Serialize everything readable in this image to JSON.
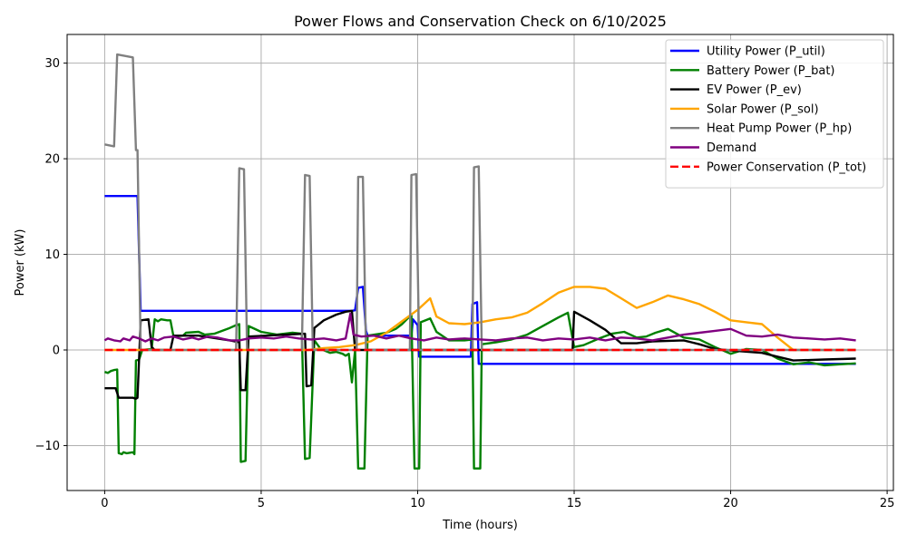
{
  "chart_data": {
    "type": "line",
    "title": "Power Flows and Conservation Check on 6/10/2025",
    "xlabel": "Time (hours)",
    "ylabel": "Power (kW)",
    "xlim": [
      -1.2,
      25.2
    ],
    "ylim": [
      -14.7,
      33
    ],
    "xticks": [
      0,
      5,
      10,
      15,
      20,
      25
    ],
    "yticks": [
      -10,
      0,
      10,
      20,
      30
    ],
    "grid": true,
    "legend_position": "top-right",
    "series": [
      {
        "name": "Utility Power (P_util)",
        "color": "#0000ff",
        "dash": "solid",
        "points": [
          [
            0,
            16.1
          ],
          [
            1.05,
            16.1
          ],
          [
            1.15,
            4.1
          ],
          [
            7.9,
            4.1
          ],
          [
            8.0,
            4.15
          ],
          [
            8.1,
            6.5
          ],
          [
            8.25,
            6.6
          ],
          [
            8.35,
            2.0
          ],
          [
            8.4,
            1.5
          ],
          [
            9.8,
            1.5
          ],
          [
            9.85,
            3.2
          ],
          [
            10.0,
            2.6
          ],
          [
            10.05,
            -0.7
          ],
          [
            11.7,
            -0.7
          ],
          [
            11.75,
            4.8
          ],
          [
            11.9,
            5.0
          ],
          [
            11.95,
            -1.45
          ],
          [
            24,
            -1.45
          ]
        ]
      },
      {
        "name": "Battery Power (P_bat)",
        "color": "#008000",
        "dash": "solid",
        "points": [
          [
            0,
            -2.3
          ],
          [
            0.1,
            -2.4
          ],
          [
            0.2,
            -2.2
          ],
          [
            0.3,
            -2.1
          ],
          [
            0.4,
            -2.05
          ],
          [
            0.45,
            -10.8
          ],
          [
            0.55,
            -10.9
          ],
          [
            0.6,
            -10.7
          ],
          [
            0.7,
            -10.8
          ],
          [
            0.9,
            -10.7
          ],
          [
            0.95,
            -10.9
          ],
          [
            1.0,
            -1.1
          ],
          [
            1.1,
            -1.0
          ],
          [
            1.2,
            0.0
          ],
          [
            1.5,
            0.1
          ],
          [
            1.6,
            3.2
          ],
          [
            1.7,
            3.0
          ],
          [
            1.8,
            3.2
          ],
          [
            2.0,
            3.1
          ],
          [
            2.1,
            3.1
          ],
          [
            2.2,
            1.4
          ],
          [
            2.5,
            1.5
          ],
          [
            2.6,
            1.8
          ],
          [
            3.0,
            1.9
          ],
          [
            3.2,
            1.6
          ],
          [
            3.5,
            1.7
          ],
          [
            4.0,
            2.3
          ],
          [
            4.2,
            2.6
          ],
          [
            4.3,
            2.7
          ],
          [
            4.35,
            -11.7
          ],
          [
            4.5,
            -11.6
          ],
          [
            4.6,
            2.5
          ],
          [
            5.0,
            1.9
          ],
          [
            5.5,
            1.6
          ],
          [
            6.0,
            1.8
          ],
          [
            6.3,
            1.7
          ],
          [
            6.4,
            -11.4
          ],
          [
            6.55,
            -11.3
          ],
          [
            6.7,
            1.0
          ],
          [
            6.9,
            0.1
          ],
          [
            7.2,
            -0.3
          ],
          [
            7.4,
            -0.2
          ],
          [
            7.6,
            -0.4
          ],
          [
            7.7,
            -0.6
          ],
          [
            7.8,
            -0.4
          ],
          [
            7.9,
            -3.4
          ],
          [
            8.0,
            0.0
          ],
          [
            8.1,
            -12.4
          ],
          [
            8.3,
            -12.4
          ],
          [
            8.4,
            1.5
          ],
          [
            9.0,
            1.8
          ],
          [
            9.3,
            2.2
          ],
          [
            9.5,
            2.7
          ],
          [
            9.8,
            3.7
          ],
          [
            9.9,
            -12.4
          ],
          [
            10.05,
            -12.4
          ],
          [
            10.1,
            2.9
          ],
          [
            10.4,
            3.3
          ],
          [
            10.6,
            1.9
          ],
          [
            11.0,
            1.0
          ],
          [
            11.5,
            1.0
          ],
          [
            11.75,
            1.1
          ],
          [
            11.8,
            -12.4
          ],
          [
            12.0,
            -12.4
          ],
          [
            12.05,
            0.6
          ],
          [
            12.5,
            0.8
          ],
          [
            13.0,
            1.1
          ],
          [
            13.5,
            1.6
          ],
          [
            14.0,
            2.5
          ],
          [
            14.5,
            3.4
          ],
          [
            14.8,
            3.9
          ],
          [
            15.0,
            0.3
          ],
          [
            15.3,
            0.5
          ],
          [
            15.8,
            1.2
          ],
          [
            16.2,
            1.7
          ],
          [
            16.6,
            1.9
          ],
          [
            17.0,
            1.3
          ],
          [
            17.3,
            1.4
          ],
          [
            17.6,
            1.8
          ],
          [
            18.0,
            2.2
          ],
          [
            18.5,
            1.3
          ],
          [
            19.0,
            1.1
          ],
          [
            19.5,
            0.3
          ],
          [
            20.0,
            -0.4
          ],
          [
            20.5,
            0.1
          ],
          [
            21.0,
            0.0
          ],
          [
            21.5,
            -0.9
          ],
          [
            22.0,
            -1.5
          ],
          [
            22.5,
            -1.3
          ],
          [
            23.0,
            -1.6
          ],
          [
            23.5,
            -1.5
          ],
          [
            24.0,
            -1.4
          ]
        ]
      },
      {
        "name": "EV Power (P_ev)",
        "color": "#000000",
        "dash": "solid",
        "points": [
          [
            0,
            -4.0
          ],
          [
            0.35,
            -4.0
          ],
          [
            0.45,
            -5.0
          ],
          [
            0.9,
            -5.0
          ],
          [
            1.0,
            -5.1
          ],
          [
            1.05,
            -5.0
          ],
          [
            1.15,
            3.1
          ],
          [
            1.4,
            3.2
          ],
          [
            1.5,
            0.3
          ],
          [
            1.6,
            0.0
          ],
          [
            2.1,
            0.0
          ],
          [
            2.2,
            1.5
          ],
          [
            3.0,
            1.5
          ],
          [
            4.0,
            1.0
          ],
          [
            4.3,
            0.8
          ],
          [
            4.35,
            -4.2
          ],
          [
            4.5,
            -4.2
          ],
          [
            4.6,
            1.4
          ],
          [
            6.4,
            1.7
          ],
          [
            6.45,
            -3.8
          ],
          [
            6.6,
            -3.7
          ],
          [
            6.7,
            2.3
          ],
          [
            7.0,
            3.1
          ],
          [
            7.4,
            3.7
          ],
          [
            7.7,
            4.0
          ],
          [
            7.9,
            4.1
          ],
          [
            8.0,
            0.0
          ],
          [
            14.95,
            0.0
          ],
          [
            15.0,
            4.0
          ],
          [
            15.5,
            3.1
          ],
          [
            16.0,
            2.1
          ],
          [
            16.5,
            0.7
          ],
          [
            17.0,
            0.7
          ],
          [
            17.5,
            0.9
          ],
          [
            18.5,
            1.0
          ],
          [
            19.0,
            0.6
          ],
          [
            19.5,
            0.1
          ],
          [
            20.0,
            -0.05
          ],
          [
            21.0,
            -0.3
          ],
          [
            21.5,
            -0.7
          ],
          [
            22.0,
            -1.1
          ],
          [
            23.0,
            -1.0
          ],
          [
            24.0,
            -0.9
          ]
        ]
      },
      {
        "name": "Solar Power (P_sol)",
        "color": "#ffa500",
        "dash": "solid",
        "points": [
          [
            0,
            0
          ],
          [
            6.5,
            0
          ],
          [
            7.0,
            0.2
          ],
          [
            7.5,
            0.3
          ],
          [
            8.0,
            0.5
          ],
          [
            8.5,
            0.9
          ],
          [
            9.0,
            1.8
          ],
          [
            9.5,
            3.0
          ],
          [
            10.0,
            4.2
          ],
          [
            10.4,
            5.4
          ],
          [
            10.6,
            3.5
          ],
          [
            11.0,
            2.8
          ],
          [
            11.5,
            2.7
          ],
          [
            12.0,
            2.9
          ],
          [
            12.5,
            3.2
          ],
          [
            13.0,
            3.4
          ],
          [
            13.5,
            3.9
          ],
          [
            14.0,
            4.9
          ],
          [
            14.5,
            6.0
          ],
          [
            15.0,
            6.6
          ],
          [
            15.5,
            6.6
          ],
          [
            16.0,
            6.4
          ],
          [
            16.5,
            5.4
          ],
          [
            17.0,
            4.4
          ],
          [
            17.5,
            5.0
          ],
          [
            18.0,
            5.7
          ],
          [
            18.5,
            5.3
          ],
          [
            19.0,
            4.8
          ],
          [
            19.5,
            4.0
          ],
          [
            20.0,
            3.1
          ],
          [
            20.5,
            2.9
          ],
          [
            21.0,
            2.7
          ],
          [
            21.5,
            1.3
          ],
          [
            22.0,
            0.0
          ],
          [
            24.0,
            0.0
          ]
        ]
      },
      {
        "name": "Heat Pump Power (P_hp)",
        "color": "#808080",
        "dash": "solid",
        "points": [
          [
            0,
            21.5
          ],
          [
            0.3,
            21.3
          ],
          [
            0.4,
            30.9
          ],
          [
            0.9,
            30.6
          ],
          [
            1.0,
            20.9
          ],
          [
            1.05,
            20.9
          ],
          [
            1.15,
            0.0
          ],
          [
            4.2,
            0.0
          ],
          [
            4.3,
            19.0
          ],
          [
            4.45,
            18.9
          ],
          [
            4.55,
            0.0
          ],
          [
            6.3,
            0.0
          ],
          [
            6.4,
            18.3
          ],
          [
            6.55,
            18.2
          ],
          [
            6.65,
            0.0
          ],
          [
            8.05,
            0.0
          ],
          [
            8.1,
            18.1
          ],
          [
            8.25,
            18.1
          ],
          [
            8.35,
            0.0
          ],
          [
            9.75,
            0.0
          ],
          [
            9.8,
            18.3
          ],
          [
            9.95,
            18.4
          ],
          [
            10.05,
            0.0
          ],
          [
            11.75,
            0.0
          ],
          [
            11.8,
            19.1
          ],
          [
            11.95,
            19.2
          ],
          [
            12.05,
            0.0
          ],
          [
            24.0,
            0.0
          ]
        ]
      },
      {
        "name": "Demand",
        "color": "#800080",
        "dash": "solid",
        "points": [
          [
            0,
            1.0
          ],
          [
            0.1,
            1.2
          ],
          [
            0.3,
            1.0
          ],
          [
            0.5,
            0.9
          ],
          [
            0.6,
            1.2
          ],
          [
            0.8,
            1.0
          ],
          [
            0.9,
            1.4
          ],
          [
            1.1,
            1.2
          ],
          [
            1.3,
            0.9
          ],
          [
            1.5,
            1.2
          ],
          [
            1.7,
            1.0
          ],
          [
            1.9,
            1.3
          ],
          [
            2.2,
            1.4
          ],
          [
            2.5,
            1.1
          ],
          [
            2.8,
            1.3
          ],
          [
            3.0,
            1.1
          ],
          [
            3.3,
            1.4
          ],
          [
            3.6,
            1.3
          ],
          [
            4.0,
            1.0
          ],
          [
            4.3,
            1.0
          ],
          [
            4.6,
            1.2
          ],
          [
            5.0,
            1.3
          ],
          [
            5.4,
            1.2
          ],
          [
            5.8,
            1.4
          ],
          [
            6.2,
            1.2
          ],
          [
            6.6,
            1.1
          ],
          [
            7.0,
            1.2
          ],
          [
            7.4,
            1.0
          ],
          [
            7.7,
            1.2
          ],
          [
            7.85,
            3.8
          ],
          [
            7.95,
            1.6
          ],
          [
            8.2,
            1.4
          ],
          [
            8.6,
            1.5
          ],
          [
            9.0,
            1.2
          ],
          [
            9.4,
            1.5
          ],
          [
            9.8,
            1.2
          ],
          [
            10.2,
            1.0
          ],
          [
            10.6,
            1.3
          ],
          [
            11.0,
            1.1
          ],
          [
            11.5,
            1.2
          ],
          [
            12.0,
            1.1
          ],
          [
            12.5,
            1.0
          ],
          [
            13.0,
            1.2
          ],
          [
            13.5,
            1.3
          ],
          [
            14.0,
            1.0
          ],
          [
            14.5,
            1.2
          ],
          [
            15.0,
            1.1
          ],
          [
            15.5,
            1.3
          ],
          [
            16.0,
            1.0
          ],
          [
            16.5,
            1.3
          ],
          [
            17.0,
            1.2
          ],
          [
            17.5,
            1.0
          ],
          [
            18.0,
            1.3
          ],
          [
            18.5,
            1.6
          ],
          [
            19.0,
            1.8
          ],
          [
            19.5,
            2.0
          ],
          [
            20.0,
            2.2
          ],
          [
            20.5,
            1.5
          ],
          [
            21.0,
            1.4
          ],
          [
            21.5,
            1.6
          ],
          [
            22.0,
            1.3
          ],
          [
            22.5,
            1.2
          ],
          [
            23.0,
            1.1
          ],
          [
            23.5,
            1.2
          ],
          [
            24.0,
            1.0
          ]
        ]
      },
      {
        "name": "Power Conservation (P_tot)",
        "color": "#ff0000",
        "dash": "dashed",
        "points": [
          [
            0,
            0
          ],
          [
            24,
            0
          ]
        ]
      }
    ]
  }
}
